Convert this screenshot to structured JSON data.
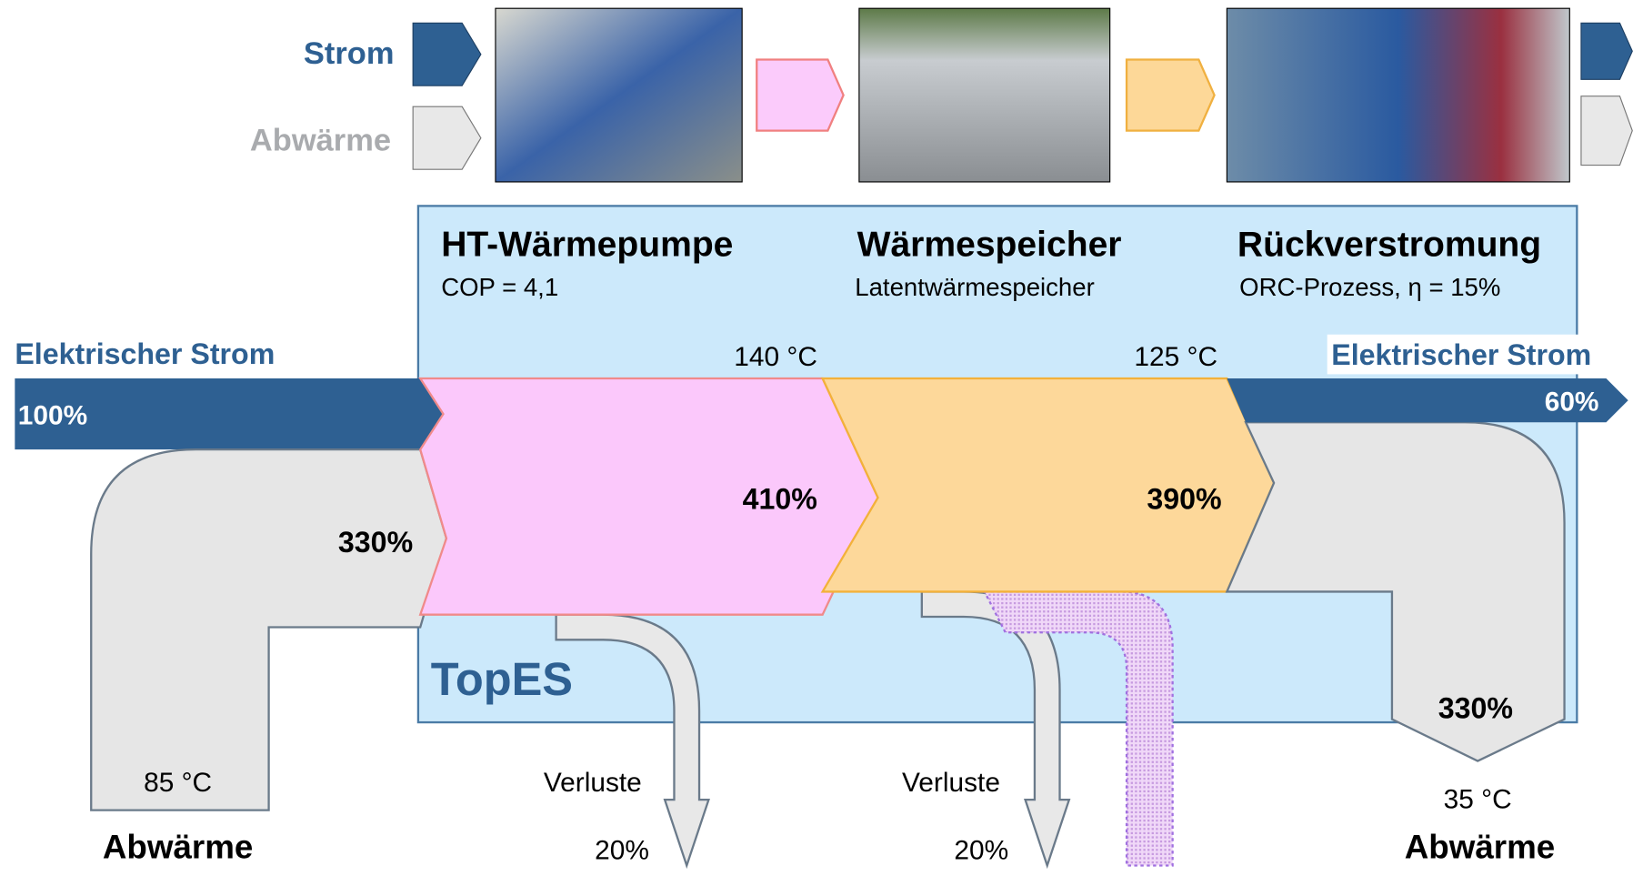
{
  "legend": {
    "power": "Strom",
    "waste_heat": "Abwärme"
  },
  "stages": [
    {
      "title": "HT-Wärmepumpe",
      "subtitle": "COP = 4,1"
    },
    {
      "title": "Wärmespeicher",
      "subtitle": "Latentwärmespeicher"
    },
    {
      "title": "Rückverstromung",
      "subtitle": "ORC-Prozess, η = 15%"
    }
  ],
  "system_name": "TopES",
  "input_power": {
    "label": "Elektrischer Strom",
    "share": "100%"
  },
  "input_heat": {
    "label": "Abwärme",
    "share": "330%",
    "temperature": "85 °C"
  },
  "heat_pump_output": {
    "share": "410%",
    "temperature": "140 °C"
  },
  "storage_output": {
    "share": "390%",
    "temperature": "125 °C"
  },
  "output_power": {
    "label": "Elektrischer Strom",
    "share": "60%"
  },
  "output_heat": {
    "label": "Abwärme",
    "share": "330%",
    "temperature": "35 °C"
  },
  "losses": [
    {
      "label": "Verluste",
      "share": "20%"
    },
    {
      "label": "Verluste",
      "share": "20%"
    }
  ]
}
